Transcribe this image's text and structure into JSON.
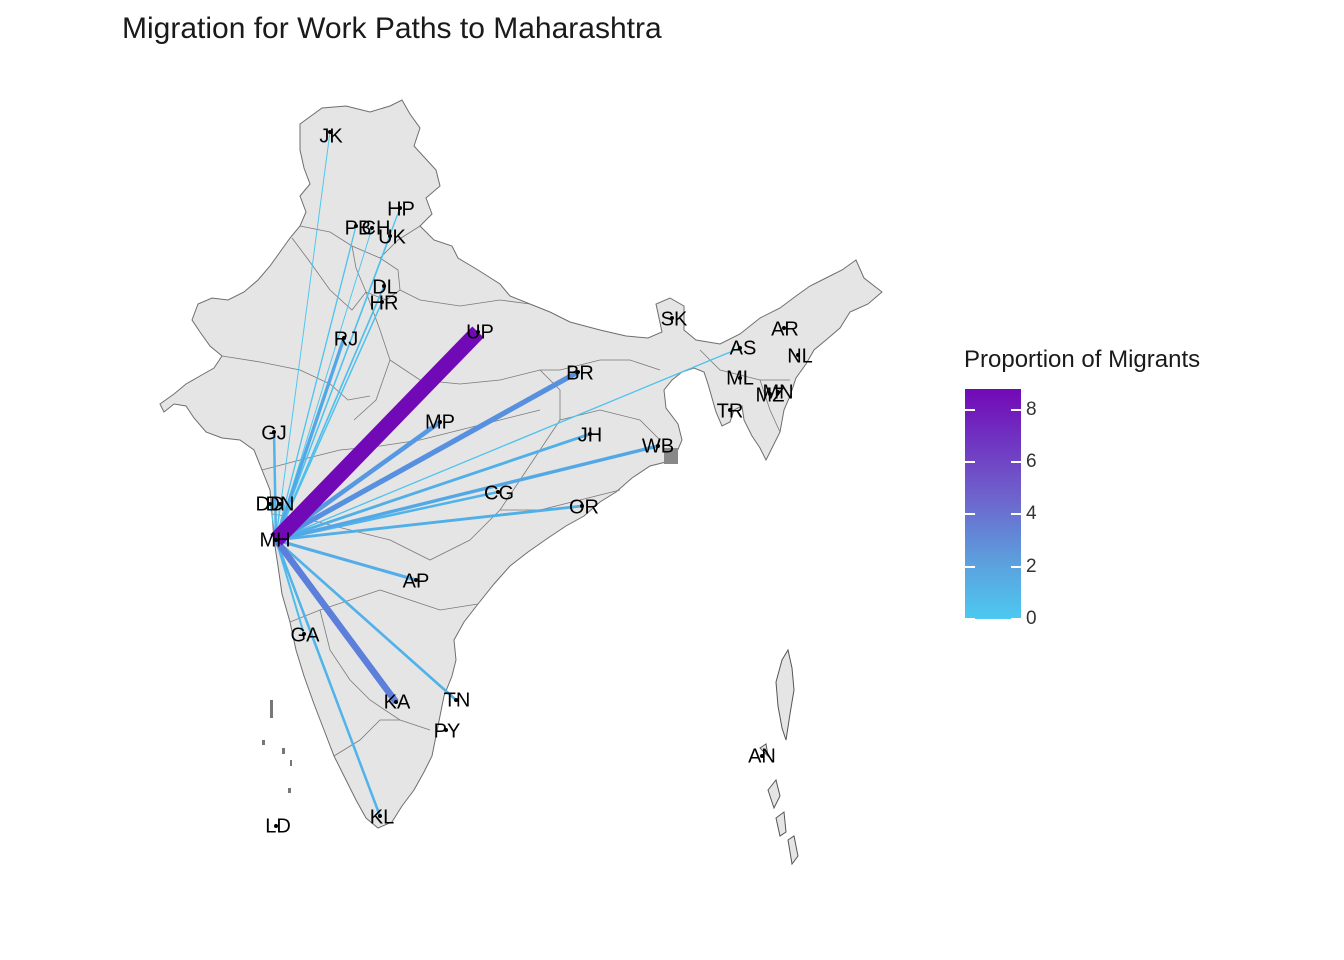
{
  "title": "Migration for Work Paths to Maharashtra",
  "legend": {
    "title": "Proportion of Migrants",
    "ticks": [
      "8",
      "6",
      "4",
      "2",
      "0"
    ],
    "tick_values": [
      8,
      6,
      4,
      2,
      0
    ],
    "range": [
      0,
      8.8
    ],
    "color_low": "#4CC9F0",
    "color_high": "#7209B7"
  },
  "destination": "MH",
  "states": [
    {
      "code": "JK",
      "flow": 0.1
    },
    {
      "code": "HP",
      "flow": 0.3
    },
    {
      "code": "PB",
      "flow": 0.3
    },
    {
      "code": "CH",
      "flow": 0.1
    },
    {
      "code": "UK",
      "flow": 0.3
    },
    {
      "code": "DL",
      "flow": 0.5
    },
    {
      "code": "HR",
      "flow": 0.4
    },
    {
      "code": "RJ",
      "flow": 1.5
    },
    {
      "code": "UP",
      "flow": 8.8
    },
    {
      "code": "BR",
      "flow": 2.6
    },
    {
      "code": "SK",
      "flow": 0.0
    },
    {
      "code": "AR",
      "flow": 0.0
    },
    {
      "code": "AS",
      "flow": 0.3
    },
    {
      "code": "NL",
      "flow": 0.0
    },
    {
      "code": "ML",
      "flow": 0.0
    },
    {
      "code": "MN",
      "flow": 0.0
    },
    {
      "code": "MZ",
      "flow": 0.0
    },
    {
      "code": "TR",
      "flow": 0.0
    },
    {
      "code": "GJ",
      "flow": 1.0
    },
    {
      "code": "MP",
      "flow": 2.2
    },
    {
      "code": "JH",
      "flow": 1.2
    },
    {
      "code": "WB",
      "flow": 1.5
    },
    {
      "code": "CG",
      "flow": 1.0
    },
    {
      "code": "OR",
      "flow": 1.2
    },
    {
      "code": "DD",
      "flow": 0.2
    },
    {
      "code": "DN",
      "flow": 0.2
    },
    {
      "code": "MH",
      "flow": 0.0
    },
    {
      "code": "AP",
      "flow": 1.3
    },
    {
      "code": "GA",
      "flow": 0.7
    },
    {
      "code": "KA",
      "flow": 3.4
    },
    {
      "code": "TN",
      "flow": 1.1
    },
    {
      "code": "PY",
      "flow": 0.0
    },
    {
      "code": "KL",
      "flow": 1.0
    },
    {
      "code": "AN",
      "flow": 0.0
    },
    {
      "code": "LD",
      "flow": 0.0
    }
  ]
}
